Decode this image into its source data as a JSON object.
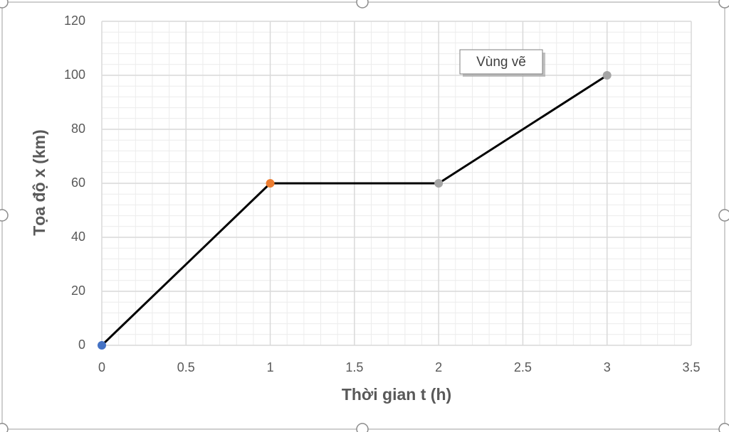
{
  "chart_data": {
    "type": "line",
    "x_label": "Thời gian t (h)",
    "y_label": "Tọa độ x (km)",
    "x": [
      0,
      1,
      2,
      3
    ],
    "series": [
      {
        "color": "#000000",
        "values": [
          0,
          60,
          60,
          100
        ],
        "marker_colors": [
          "#4472c4",
          "#ed7d31",
          "#a5a5a5",
          "#a5a5a5"
        ]
      }
    ],
    "xlim": [
      0,
      3.5
    ],
    "xticks": [
      0,
      0.5,
      1,
      1.5,
      2,
      2.5,
      3,
      3.5
    ],
    "ylim": [
      0,
      120
    ],
    "yticks": [
      0,
      20,
      40,
      60,
      80,
      100,
      120
    ],
    "grid": true,
    "minor_grid": true,
    "tooltip": "Vùng vẽ"
  }
}
